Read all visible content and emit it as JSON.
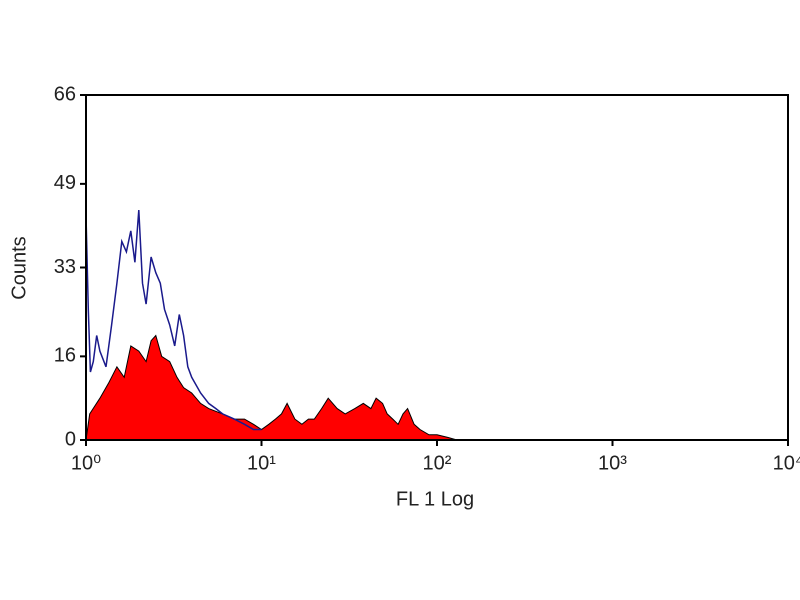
{
  "chart_data": {
    "type": "histogram-overlay",
    "xlabel": "FL 1 Log",
    "ylabel": "Counts",
    "xscale": "log",
    "xlim": [
      1,
      10000
    ],
    "ylim": [
      0,
      66
    ],
    "xticks": [
      {
        "value": 1,
        "label": "10⁰"
      },
      {
        "value": 10,
        "label": "10¹"
      },
      {
        "value": 100,
        "label": "10²"
      },
      {
        "value": 1000,
        "label": "10³"
      },
      {
        "value": 10000,
        "label": "10⁴"
      }
    ],
    "yticks": [
      0,
      16,
      33,
      49,
      66
    ],
    "series": [
      {
        "color": "#ff0000",
        "fill": true,
        "x": [
          1,
          1.05,
          1.2,
          1.35,
          1.5,
          1.65,
          1.8,
          2.0,
          2.2,
          2.35,
          2.5,
          2.7,
          3.0,
          3.3,
          3.6,
          4.0,
          4.5,
          5.0,
          6.0,
          7.0,
          8.0,
          9.0,
          10,
          11,
          12,
          13,
          14,
          15.5,
          17,
          18.5,
          20,
          22,
          24,
          27,
          30,
          34,
          38,
          42,
          45,
          49,
          52,
          56,
          60,
          64,
          68,
          74,
          80,
          90,
          100,
          115,
          130
        ],
        "values": [
          0,
          5,
          8,
          11,
          14,
          12,
          18,
          17,
          15,
          19,
          20,
          16,
          15,
          12,
          10,
          9,
          7,
          6,
          5,
          4,
          4,
          3,
          2,
          3,
          4,
          5,
          7,
          4,
          3,
          4,
          4,
          6,
          8,
          6,
          5,
          6,
          7,
          6,
          8,
          7,
          5,
          4,
          3,
          5,
          6,
          3,
          2,
          1,
          1,
          0.5,
          0
        ]
      },
      {
        "color": "#1a1a8c",
        "fill": false,
        "x": [
          1,
          1.03,
          1.06,
          1.1,
          1.15,
          1.2,
          1.3,
          1.4,
          1.5,
          1.6,
          1.7,
          1.8,
          1.9,
          2.0,
          2.1,
          2.2,
          2.35,
          2.5,
          2.65,
          2.8,
          3.0,
          3.2,
          3.4,
          3.6,
          3.8,
          4.0,
          4.5,
          5.0,
          5.5,
          6.0,
          7.0,
          8.0,
          9.0,
          10
        ],
        "values": [
          43,
          25,
          13,
          15,
          20,
          17,
          14,
          22,
          30,
          38,
          36,
          40,
          34,
          44,
          30,
          26,
          35,
          32,
          30,
          25,
          22,
          18,
          24,
          20,
          14,
          12,
          9,
          7,
          6,
          5,
          4,
          3,
          2,
          2
        ]
      }
    ]
  }
}
